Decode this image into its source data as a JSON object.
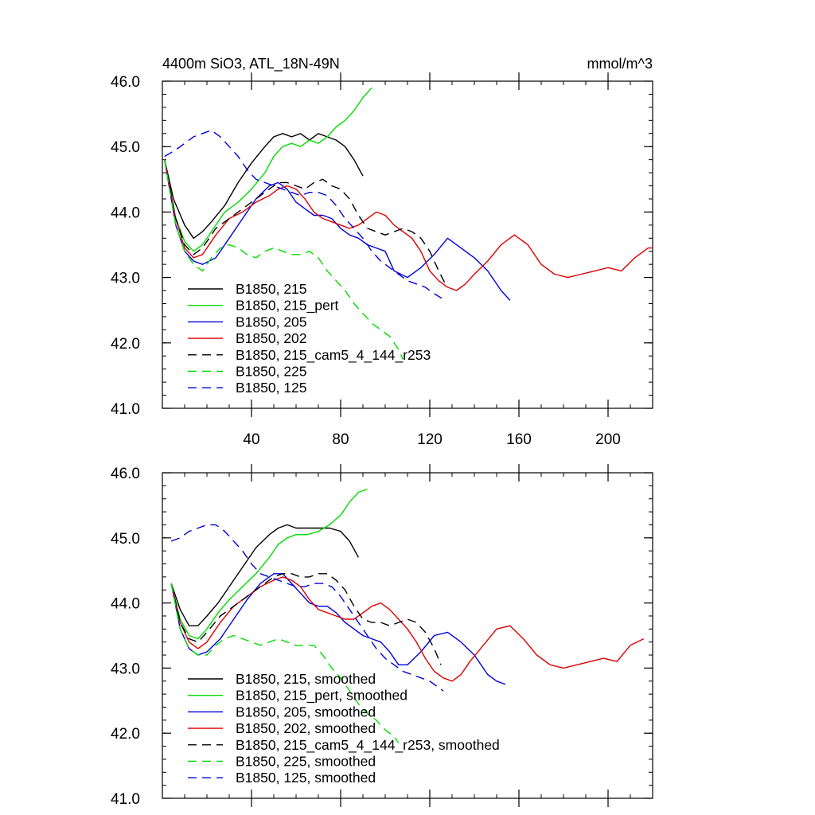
{
  "figure": {
    "title_left": "4400m SiO3, ATL_18N-49N",
    "title_right": "mmol/m^3"
  },
  "chart_data": [
    {
      "type": "line",
      "name": "raw",
      "title": "4400m SiO3, ATL_18N-49N",
      "units": "mmol/m^3",
      "xlim": [
        0,
        220
      ],
      "ylim": [
        41.0,
        46.0
      ],
      "xticks": [
        40,
        80,
        120,
        160,
        200
      ],
      "yticks": [
        41.0,
        42.0,
        43.0,
        44.0,
        45.0,
        46.0
      ],
      "ytick_labels": [
        "41.0",
        "42.0",
        "43.0",
        "44.0",
        "45.0",
        "46.0"
      ],
      "xtick_labels": [
        "40",
        "80",
        "120",
        "160",
        "200"
      ],
      "legend_position": "bottom-left",
      "series": [
        {
          "name": "B1850, 215",
          "color": "#000000",
          "dash": "solid",
          "x": [
            1,
            5,
            10,
            14,
            18,
            22,
            28,
            34,
            40,
            46,
            50,
            54,
            58,
            62,
            66,
            70,
            74,
            78,
            82,
            86,
            90
          ],
          "y": [
            44.8,
            44.2,
            43.8,
            43.6,
            43.7,
            43.85,
            44.1,
            44.45,
            44.75,
            45.0,
            45.15,
            45.2,
            45.15,
            45.2,
            45.1,
            45.2,
            45.15,
            45.1,
            45.0,
            44.8,
            44.55
          ]
        },
        {
          "name": "B1850, 215_pert",
          "color": "#00dd00",
          "dash": "solid",
          "x": [
            1,
            5,
            10,
            14,
            18,
            22,
            28,
            34,
            40,
            46,
            50,
            54,
            58,
            62,
            66,
            70,
            74,
            78,
            82,
            86,
            90,
            94
          ],
          "y": [
            44.8,
            44.0,
            43.55,
            43.4,
            43.5,
            43.7,
            44.0,
            44.15,
            44.35,
            44.6,
            44.85,
            45.0,
            45.05,
            45.0,
            45.1,
            45.05,
            45.15,
            45.3,
            45.4,
            45.55,
            45.75,
            45.9
          ]
        },
        {
          "name": "B1850, 205",
          "color": "#0000dd",
          "dash": "solid",
          "x": [
            1,
            6,
            10,
            14,
            18,
            24,
            30,
            36,
            42,
            48,
            52,
            56,
            60,
            64,
            68,
            72,
            76,
            80,
            84,
            88,
            92,
            96,
            100,
            104,
            110,
            116,
            122,
            128,
            134,
            140,
            146,
            152,
            156
          ],
          "y": [
            44.8,
            43.8,
            43.4,
            43.25,
            43.2,
            43.3,
            43.6,
            43.9,
            44.2,
            44.4,
            44.45,
            44.35,
            44.15,
            44.05,
            43.95,
            43.95,
            43.9,
            43.75,
            43.65,
            43.6,
            43.5,
            43.45,
            43.4,
            43.1,
            43.0,
            43.15,
            43.35,
            43.6,
            43.45,
            43.3,
            43.1,
            42.8,
            42.65
          ]
        },
        {
          "name": "B1850, 202",
          "color": "#dd0000",
          "dash": "solid",
          "x": [
            1,
            6,
            10,
            14,
            18,
            24,
            30,
            36,
            42,
            48,
            52,
            56,
            60,
            64,
            68,
            72,
            76,
            80,
            84,
            88,
            92,
            96,
            100,
            104,
            108,
            112,
            116,
            120,
            124,
            128,
            132,
            136,
            140,
            146,
            152,
            158,
            164,
            170,
            176,
            182,
            188,
            194,
            200,
            206,
            212,
            218,
            220
          ],
          "y": [
            44.8,
            43.9,
            43.45,
            43.3,
            43.35,
            43.65,
            43.9,
            44.0,
            44.15,
            44.25,
            44.35,
            44.4,
            44.35,
            44.2,
            44.0,
            43.9,
            43.85,
            43.8,
            43.75,
            43.8,
            43.9,
            44.0,
            43.95,
            43.8,
            43.7,
            43.6,
            43.4,
            43.1,
            42.95,
            42.85,
            42.8,
            42.9,
            43.05,
            43.25,
            43.5,
            43.65,
            43.5,
            43.2,
            43.05,
            43.0,
            43.05,
            43.1,
            43.15,
            43.1,
            43.3,
            43.45,
            43.45
          ]
        },
        {
          "name": "B1850, 215_cam5_4_144_r253",
          "color": "#000000",
          "dash": "dashed",
          "x": [
            1,
            6,
            10,
            14,
            18,
            24,
            30,
            36,
            42,
            48,
            52,
            56,
            60,
            64,
            68,
            72,
            76,
            80,
            84,
            88,
            92,
            96,
            100,
            104,
            108,
            112,
            116,
            120,
            124,
            127
          ],
          "y": [
            44.8,
            43.9,
            43.5,
            43.35,
            43.45,
            43.75,
            43.9,
            44.05,
            44.2,
            44.35,
            44.45,
            44.45,
            44.4,
            44.35,
            44.45,
            44.5,
            44.4,
            44.35,
            44.2,
            43.95,
            43.75,
            43.7,
            43.65,
            43.7,
            43.75,
            43.7,
            43.6,
            43.4,
            43.1,
            42.9
          ]
        },
        {
          "name": "B1850, 225",
          "color": "#00dd00",
          "dash": "dashed",
          "x": [
            1,
            6,
            10,
            14,
            18,
            22,
            26,
            30,
            34,
            38,
            42,
            46,
            50,
            54,
            58,
            62,
            66,
            70,
            74,
            78,
            82,
            86,
            90,
            94,
            98,
            102,
            106,
            108
          ],
          "y": [
            44.8,
            43.8,
            43.4,
            43.2,
            43.1,
            43.3,
            43.45,
            43.5,
            43.45,
            43.35,
            43.3,
            43.4,
            43.45,
            43.4,
            43.35,
            43.35,
            43.4,
            43.3,
            43.1,
            42.95,
            42.8,
            42.6,
            42.45,
            42.3,
            42.2,
            42.1,
            41.9,
            41.75
          ]
        },
        {
          "name": "B1850, 125",
          "color": "#0000dd",
          "dash": "dashed",
          "x": [
            1,
            6,
            10,
            14,
            18,
            22,
            26,
            30,
            34,
            38,
            42,
            46,
            50,
            54,
            58,
            62,
            66,
            70,
            74,
            78,
            82,
            86,
            90,
            94,
            98,
            102,
            106,
            110,
            114,
            118,
            122,
            127
          ],
          "y": [
            44.85,
            44.95,
            45.05,
            45.15,
            45.2,
            45.25,
            45.15,
            45.0,
            44.85,
            44.65,
            44.5,
            44.45,
            44.4,
            44.35,
            44.3,
            44.25,
            44.3,
            44.3,
            44.25,
            44.1,
            43.9,
            43.75,
            43.6,
            43.4,
            43.25,
            43.15,
            43.05,
            42.95,
            42.9,
            42.85,
            42.75,
            42.65
          ]
        }
      ]
    },
    {
      "type": "line",
      "name": "smoothed",
      "xlim": [
        0,
        220
      ],
      "ylim": [
        41.0,
        46.0
      ],
      "xticks": [
        40,
        80,
        120,
        160,
        200
      ],
      "yticks": [
        41.0,
        42.0,
        43.0,
        44.0,
        45.0,
        46.0
      ],
      "ytick_labels": [
        "41.0",
        "42.0",
        "43.0",
        "44.0",
        "45.0",
        "46.0"
      ],
      "legend_position": "bottom-left",
      "series": [
        {
          "name": "B1850, 215, smoothed",
          "color": "#000000",
          "dash": "solid",
          "x": [
            4,
            8,
            12,
            16,
            20,
            25,
            30,
            36,
            42,
            48,
            52,
            56,
            60,
            65,
            70,
            75,
            80,
            84,
            88
          ],
          "y": [
            44.3,
            43.9,
            43.65,
            43.65,
            43.8,
            44.0,
            44.25,
            44.55,
            44.85,
            45.05,
            45.15,
            45.2,
            45.15,
            45.15,
            45.15,
            45.15,
            45.1,
            44.95,
            44.7
          ]
        },
        {
          "name": "B1850, 215_pert, smoothed",
          "color": "#00dd00",
          "dash": "solid",
          "x": [
            4,
            8,
            12,
            16,
            20,
            25,
            30,
            36,
            42,
            48,
            52,
            56,
            60,
            65,
            70,
            75,
            80,
            84,
            88,
            92
          ],
          "y": [
            44.3,
            43.75,
            43.5,
            43.45,
            43.6,
            43.85,
            44.05,
            44.25,
            44.45,
            44.7,
            44.9,
            45.0,
            45.05,
            45.05,
            45.1,
            45.2,
            45.35,
            45.55,
            45.7,
            45.75
          ]
        },
        {
          "name": "B1850, 205, smoothed",
          "color": "#0000dd",
          "dash": "solid",
          "x": [
            4,
            8,
            12,
            16,
            20,
            26,
            32,
            38,
            44,
            50,
            54,
            58,
            62,
            66,
            70,
            74,
            78,
            82,
            86,
            90,
            94,
            98,
            102,
            106,
            110,
            116,
            122,
            128,
            134,
            140,
            146,
            150,
            154
          ],
          "y": [
            44.3,
            43.6,
            43.3,
            43.2,
            43.25,
            43.45,
            43.75,
            44.05,
            44.3,
            44.45,
            44.45,
            44.3,
            44.15,
            44.0,
            43.95,
            43.95,
            43.85,
            43.7,
            43.6,
            43.5,
            43.45,
            43.4,
            43.25,
            43.05,
            43.05,
            43.25,
            43.5,
            43.55,
            43.4,
            43.2,
            42.9,
            42.8,
            42.75
          ]
        },
        {
          "name": "B1850, 202, smoothed",
          "color": "#dd0000",
          "dash": "solid",
          "x": [
            4,
            8,
            12,
            16,
            20,
            26,
            32,
            38,
            44,
            50,
            54,
            58,
            62,
            66,
            70,
            74,
            78,
            82,
            86,
            90,
            94,
            98,
            102,
            106,
            110,
            114,
            118,
            122,
            126,
            130,
            134,
            138,
            144,
            150,
            156,
            162,
            168,
            174,
            180,
            186,
            192,
            198,
            204,
            210,
            216
          ],
          "y": [
            44.3,
            43.7,
            43.4,
            43.3,
            43.4,
            43.7,
            43.95,
            44.1,
            44.25,
            44.35,
            44.4,
            44.35,
            44.25,
            44.05,
            43.9,
            43.85,
            43.8,
            43.75,
            43.75,
            43.85,
            43.95,
            44.0,
            43.9,
            43.75,
            43.6,
            43.4,
            43.15,
            42.95,
            42.85,
            42.8,
            42.9,
            43.1,
            43.35,
            43.6,
            43.65,
            43.45,
            43.2,
            43.05,
            43.0,
            43.05,
            43.1,
            43.15,
            43.1,
            43.35,
            43.45
          ]
        },
        {
          "name": "B1850, 215_cam5_4_144_r253, smoothed",
          "color": "#000000",
          "dash": "dashed",
          "x": [
            4,
            8,
            12,
            16,
            20,
            26,
            32,
            38,
            44,
            50,
            54,
            58,
            62,
            66,
            70,
            74,
            78,
            82,
            86,
            90,
            94,
            98,
            102,
            106,
            110,
            114,
            118,
            122,
            125
          ],
          "y": [
            44.3,
            43.7,
            43.45,
            43.4,
            43.55,
            43.8,
            43.95,
            44.1,
            44.25,
            44.4,
            44.45,
            44.45,
            44.4,
            44.4,
            44.45,
            44.45,
            44.35,
            44.2,
            43.95,
            43.75,
            43.7,
            43.7,
            43.65,
            43.7,
            43.75,
            43.7,
            43.55,
            43.3,
            43.05
          ]
        },
        {
          "name": "B1850, 225, smoothed",
          "color": "#00dd00",
          "dash": "dashed",
          "x": [
            4,
            8,
            12,
            16,
            20,
            24,
            28,
            32,
            36,
            40,
            44,
            48,
            52,
            56,
            60,
            64,
            68,
            72,
            76,
            80,
            84,
            88,
            92,
            96,
            100,
            104,
            106
          ],
          "y": [
            44.3,
            43.6,
            43.3,
            43.2,
            43.2,
            43.35,
            43.45,
            43.5,
            43.45,
            43.4,
            43.35,
            43.4,
            43.45,
            43.4,
            43.35,
            43.35,
            43.35,
            43.2,
            43.0,
            42.85,
            42.65,
            42.45,
            42.3,
            42.2,
            42.05,
            41.95,
            41.85
          ]
        },
        {
          "name": "B1850, 125, smoothed",
          "color": "#0000dd",
          "dash": "dashed",
          "x": [
            4,
            8,
            12,
            16,
            20,
            24,
            28,
            32,
            36,
            40,
            44,
            48,
            52,
            56,
            60,
            64,
            68,
            72,
            76,
            80,
            84,
            88,
            92,
            96,
            100,
            104,
            108,
            112,
            116,
            120,
            124,
            126
          ],
          "y": [
            44.95,
            45.0,
            45.1,
            45.15,
            45.2,
            45.2,
            45.1,
            44.95,
            44.8,
            44.6,
            44.45,
            44.4,
            44.35,
            44.3,
            44.25,
            44.25,
            44.3,
            44.3,
            44.25,
            44.1,
            43.9,
            43.7,
            43.5,
            43.3,
            43.15,
            43.05,
            42.95,
            42.9,
            42.85,
            42.8,
            42.7,
            42.65
          ]
        }
      ]
    }
  ]
}
